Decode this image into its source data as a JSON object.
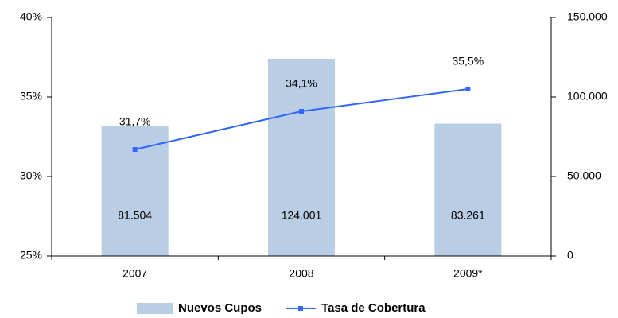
{
  "chart_data": {
    "type": "bar",
    "categories": [
      "2007",
      "2008",
      "2009*"
    ],
    "series": [
      {
        "name": "Nuevos Cupos",
        "type": "bar",
        "axis": "y2",
        "color": "#b9cde5",
        "values": [
          81504,
          124001,
          83261
        ],
        "value_labels": [
          "81.504",
          "124.001",
          "83.261"
        ]
      },
      {
        "name": "Tasa de Cobertura",
        "type": "line",
        "color": "#3366ff",
        "values": [
          31.7,
          34.1,
          35.5
        ],
        "value_labels": [
          "31,7%",
          "34,1%",
          "35,5%"
        ]
      }
    ],
    "ylim": [
      25,
      40
    ],
    "yticks": [
      {
        "value": 25,
        "label": "25%"
      },
      {
        "value": 30,
        "label": "30%"
      },
      {
        "value": 35,
        "label": "35%"
      },
      {
        "value": 40,
        "label": "40%"
      }
    ],
    "y2lim": [
      0,
      150000
    ],
    "y2ticks": [
      0,
      {
        "value": 50000,
        "label": "50.000"
      },
      {
        "value": 100000,
        "label": "100.000"
      },
      {
        "value": 150000,
        "label": "150.000"
      }
    ],
    "legend": "bottom"
  }
}
